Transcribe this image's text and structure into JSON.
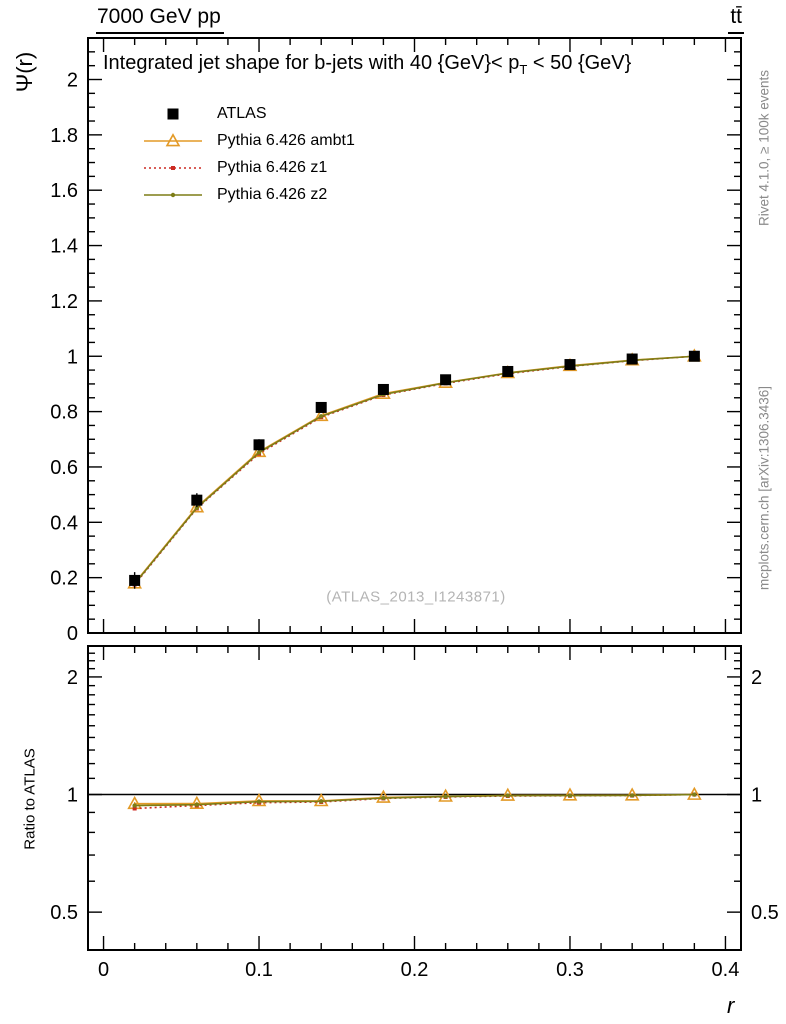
{
  "header": {
    "left": "7000 GeV pp",
    "right": "tt̄"
  },
  "watermark": "(ATLAS_2013_I1243871)",
  "side_notes": {
    "top_right": "Rivet 4.1.0, ≥ 100k events",
    "bottom_right": "mcplots.cern.ch [arXiv:1306.3436]"
  },
  "chart_data": {
    "type": "line",
    "title": "Integrated jet shape for b-jets with 40 {GeV}< p_T < 50 {GeV}",
    "title_parts": {
      "pre": "Integrated jet shape for b-jets with 40 {GeV}< p",
      "sub": "T",
      "post": " < 50 {GeV}"
    },
    "xlabel": "r",
    "ylabel": "Ψ(r)",
    "ratio_ylabel": "Ratio to ATLAS",
    "legend_position": "top-left",
    "axes": {
      "xlim": [
        -0.01,
        0.41
      ],
      "ylim": [
        0,
        2.15
      ],
      "ratio_ylim": [
        0.4,
        2.4
      ],
      "ratio_scale": "log",
      "grid": false,
      "xticks": {
        "values": [
          0,
          0.1,
          0.2,
          0.3,
          0.4
        ],
        "labels": [
          "0",
          "0.1",
          "0.2",
          "0.3",
          "0.4"
        ],
        "minor_step": 0.02
      },
      "yticks_main": {
        "values": [
          0,
          0.2,
          0.4,
          0.6,
          0.8,
          1,
          1.2,
          1.4,
          1.6,
          1.8,
          2
        ],
        "labels": [
          "0",
          "0.2",
          "0.4",
          "0.6",
          "0.8",
          "1",
          "1.2",
          "1.4",
          "1.6",
          "1.8",
          "2"
        ],
        "minor_step": 0.05
      },
      "yticks_ratio": {
        "values": [
          0.5,
          1,
          2
        ],
        "labels": [
          "0.5",
          "1",
          "2"
        ],
        "minor_step": 0.1
      }
    },
    "x": [
      0.02,
      0.06,
      0.1,
      0.14,
      0.18,
      0.22,
      0.26,
      0.3,
      0.34,
      0.38
    ],
    "ratio_reference": 1,
    "series": [
      {
        "name": "ATLAS",
        "role": "data",
        "color": "#000000",
        "marker": "square",
        "line": "none",
        "values": [
          0.19,
          0.48,
          0.68,
          0.815,
          0.88,
          0.915,
          0.945,
          0.97,
          0.99,
          1.0
        ],
        "yerr": [
          0.03,
          0.025,
          0.02,
          0.015,
          0.012,
          0.01,
          0.008,
          0.006,
          0.005,
          0.004
        ]
      },
      {
        "name": "Pythia 6.426 ambt1",
        "color": "#e39a27",
        "marker": "triangle-open",
        "line": "solid",
        "values": [
          0.18,
          0.455,
          0.655,
          0.785,
          0.865,
          0.905,
          0.94,
          0.966,
          0.986,
          1.0
        ]
      },
      {
        "name": "Pythia 6.426 z1",
        "color": "#cc2a22",
        "marker": "small-square",
        "line": "dotted",
        "values": [
          0.175,
          0.45,
          0.648,
          0.78,
          0.86,
          0.902,
          0.937,
          0.963,
          0.984,
          1.0
        ]
      },
      {
        "name": "Pythia 6.426 z2",
        "color": "#7d7d17",
        "marker": "small-dot",
        "line": "solid",
        "values": [
          0.178,
          0.452,
          0.652,
          0.783,
          0.862,
          0.904,
          0.939,
          0.964,
          0.985,
          1.0
        ]
      }
    ]
  }
}
